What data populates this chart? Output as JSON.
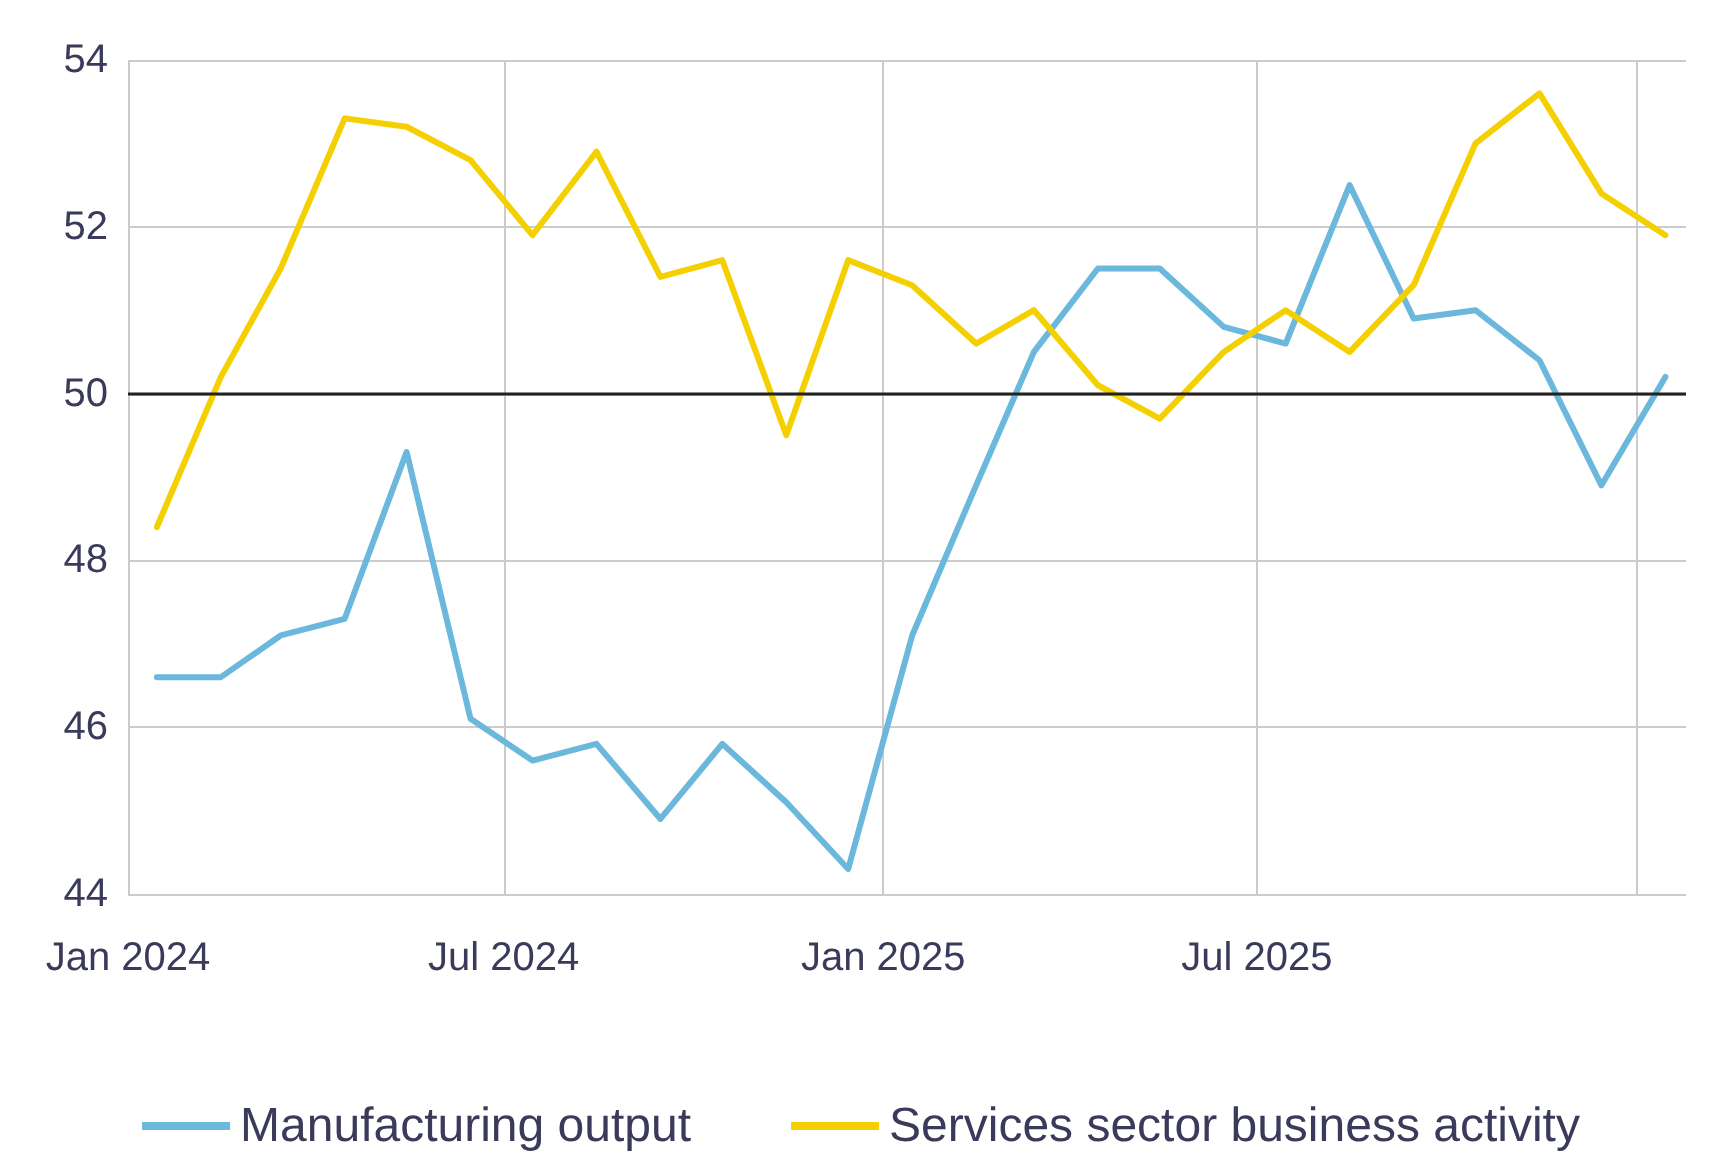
{
  "chart_data": {
    "type": "line",
    "x": [
      "2024-01-15",
      "2024-02-15",
      "2024-03-15",
      "2024-04-15",
      "2024-05-15",
      "2024-06-15",
      "2024-07-15",
      "2024-08-15",
      "2024-09-15",
      "2024-10-15",
      "2024-11-15",
      "2024-12-15",
      "2025-01-15",
      "2025-02-15",
      "2025-03-15",
      "2025-04-15",
      "2025-05-15",
      "2025-06-15",
      "2025-07-15",
      "2025-08-15",
      "2025-09-15",
      "2025-10-15",
      "2025-11-15",
      "2025-12-15",
      "2026-01-15"
    ],
    "series": [
      {
        "name": "Manufacturing output",
        "color": "#6bb8dc",
        "values": [
          46.6,
          46.6,
          47.1,
          47.3,
          49.3,
          46.1,
          45.6,
          45.8,
          44.9,
          45.8,
          45.1,
          44.3,
          47.1,
          48.9,
          50.5,
          51.5,
          51.5,
          50.8,
          50.6,
          52.5,
          50.9,
          51.0,
          50.4,
          48.9,
          50.2
        ]
      },
      {
        "name": "Services sector business activity",
        "color": "#f5d000",
        "values": [
          48.4,
          50.2,
          51.5,
          53.3,
          53.2,
          52.8,
          51.9,
          52.9,
          51.4,
          51.6,
          49.5,
          51.6,
          51.3,
          50.6,
          51.0,
          50.1,
          49.7,
          50.5,
          51.0,
          50.5,
          51.3,
          53.0,
          53.6,
          52.4,
          51.9
        ]
      }
    ],
    "xlim": [
      "2024-01-01",
      "2026-01-25"
    ],
    "xticks": [
      {
        "value": "2024-01-01",
        "label": "Jan 2024"
      },
      {
        "value": "2024-07-01",
        "label": "Jul 2024"
      },
      {
        "value": "2025-01-01",
        "label": "Jan 2025"
      },
      {
        "value": "2025-07-01",
        "label": "Jul 2025"
      },
      {
        "value": "2026-01-01",
        "label": null
      }
    ],
    "ylim": [
      44,
      54
    ],
    "yticks": [
      44,
      46,
      48,
      50,
      52,
      54
    ],
    "ref_lines": [
      {
        "axis": "y",
        "value": 50,
        "color": "#222222"
      }
    ],
    "grid": true,
    "legend": "bottom",
    "marker": "none",
    "line_style": "solid"
  }
}
